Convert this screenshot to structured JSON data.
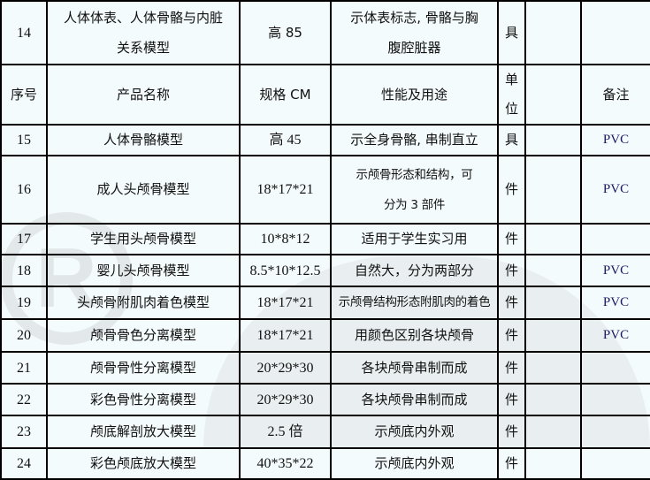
{
  "header": {
    "no": "序号",
    "name": "产品名称",
    "spec": "规格 CM",
    "use": "性能及用途",
    "unit": "单位",
    "extra": "",
    "note": "备注"
  },
  "rows_top": [
    {
      "no": "14",
      "name": [
        "人体体表、人体骨骼与内脏",
        "关系模型"
      ],
      "spec": "高 85",
      "use": [
        "示体表标志, 骨骼与胸",
        "腹腔脏器"
      ],
      "unit": "具",
      "extra": "",
      "note": ""
    }
  ],
  "rows": [
    {
      "no": "15",
      "name": "人体骨骼模型",
      "spec": "高 45",
      "use": "示全身骨骼, 串制直立",
      "unit": "具",
      "note": "PVC"
    },
    {
      "no": "16",
      "name": "成人头颅骨模型",
      "spec": "18*17*21",
      "use": "示颅骨形态和结构，可|分为 3 部件",
      "unit": "件",
      "note": "PVC"
    },
    {
      "no": "17",
      "name": "学生用头颅骨模型",
      "spec": "10*8*12",
      "use": "适用于学生实习用",
      "unit": "件",
      "note": ""
    },
    {
      "no": "18",
      "name": "婴儿头颅骨模型",
      "spec": "8.5*10*12.5",
      "use": "自然大，分为两部分",
      "unit": "件",
      "note": "PVC"
    },
    {
      "no": "19",
      "name": "头颅骨附肌肉着色模型",
      "spec": "18*17*21",
      "use": "示颅骨结构形态附肌肉的着色",
      "unit": "件",
      "note": "PVC"
    },
    {
      "no": "20",
      "name": "颅骨骨色分离模型",
      "spec": "18*17*21",
      "use": "用颜色区别各块颅骨",
      "unit": "件",
      "note": "PVC"
    },
    {
      "no": "21",
      "name": "颅骨骨性分离模型",
      "spec": "20*29*30",
      "use": "各块颅骨串制而成",
      "unit": "件",
      "note": ""
    },
    {
      "no": "22",
      "name": "彩色骨性分离模型",
      "spec": "20*29*30",
      "use": "各块颅骨串制而成",
      "unit": "件",
      "note": ""
    },
    {
      "no": "23",
      "name": "颅底解剖放大模型",
      "spec": "2.5 倍",
      "use": "示颅底内外观",
      "unit": "件",
      "note": ""
    },
    {
      "no": "24",
      "name": "彩色颅底放大模型",
      "spec": "40*35*22",
      "use": "示颅底内外观",
      "unit": "件",
      "note": ""
    }
  ]
}
